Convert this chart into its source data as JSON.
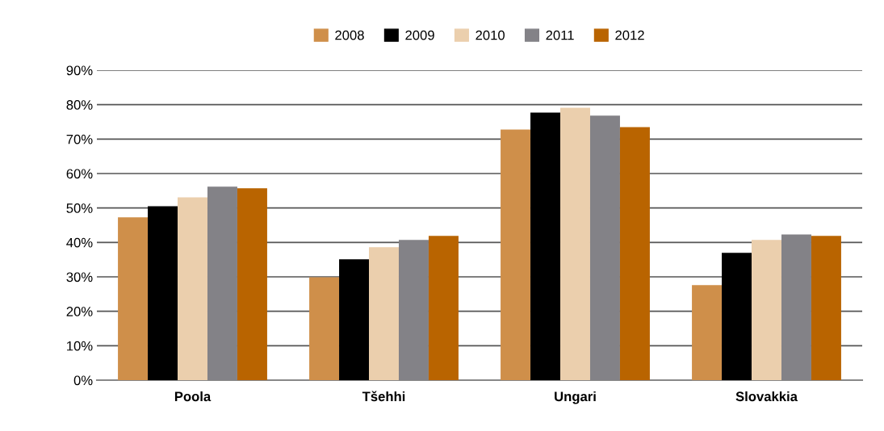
{
  "chart_data": {
    "type": "bar",
    "categories": [
      "Poola",
      "Tšehhi",
      "Ungari",
      "Slovakkia"
    ],
    "series": [
      {
        "name": "2008",
        "color": "#cf8f4a",
        "values": [
          47.3,
          29.9,
          72.8,
          27.6
        ]
      },
      {
        "name": "2009",
        "color": "#000000",
        "values": [
          50.5,
          35.1,
          77.7,
          37.0
        ]
      },
      {
        "name": "2010",
        "color": "#ebcfad",
        "values": [
          53.1,
          38.6,
          79.1,
          40.7
        ]
      },
      {
        "name": "2011",
        "color": "#838287",
        "values": [
          56.2,
          40.7,
          76.8,
          42.3
        ]
      },
      {
        "name": "2012",
        "color": "#b96400",
        "values": [
          55.7,
          41.9,
          73.5,
          41.9
        ]
      }
    ],
    "ylim": [
      0,
      90
    ],
    "yticks": [
      {
        "value": 0,
        "label": "0%"
      },
      {
        "value": 10,
        "label": "10%"
      },
      {
        "value": 20,
        "label": "20%"
      },
      {
        "value": 30,
        "label": "30%"
      },
      {
        "value": 40,
        "label": "40%"
      },
      {
        "value": 50,
        "label": "50%"
      },
      {
        "value": 60,
        "label": "60%"
      },
      {
        "value": 70,
        "label": "70%"
      },
      {
        "value": 80,
        "label": "80%"
      },
      {
        "value": 90,
        "label": "90%"
      }
    ],
    "grid": "y",
    "legend": "top"
  }
}
